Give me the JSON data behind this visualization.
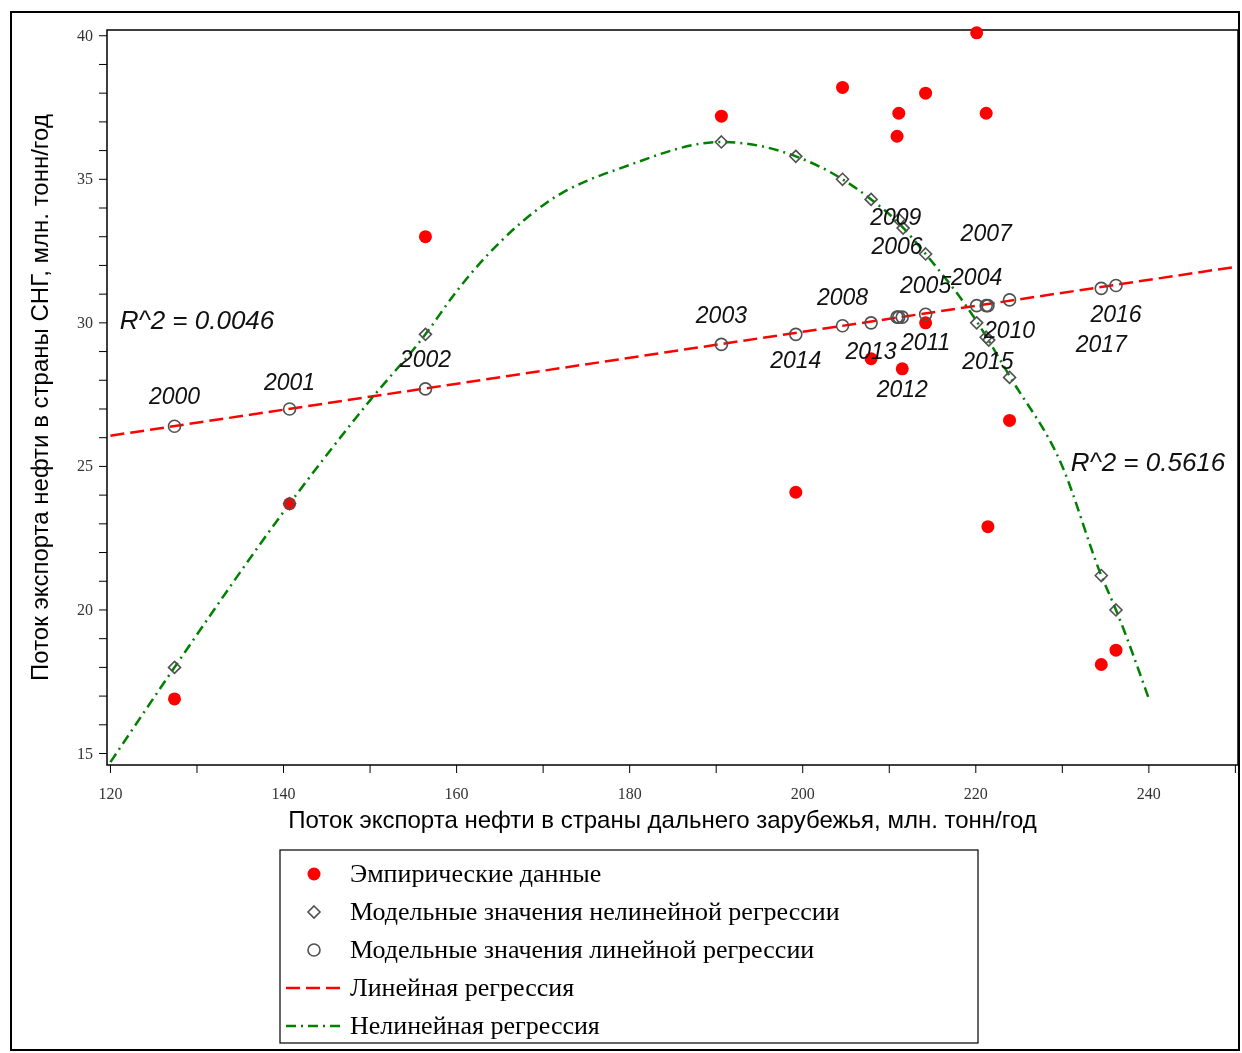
{
  "chart_data": {
    "type": "scatter",
    "xlabel": "Поток экспорта нефти в страны дальнего зарубежья, млн. тонн/год",
    "ylabel": "Поток экспорта нефти в страны СНГ, млн. тонн/год",
    "xlim": [
      119.6,
      250.3
    ],
    "ylim": [
      14.6,
      40.2
    ],
    "xticks": [
      120,
      {
        "value": 130,
        "label": null
      },
      140,
      {
        "value": 150,
        "label": null
      },
      160,
      {
        "value": 170,
        "label": null
      },
      180,
      {
        "value": 190,
        "label": null
      },
      200,
      {
        "value": 210,
        "label": null
      },
      220,
      {
        "value": 230,
        "label": null
      },
      240,
      {
        "value": 250,
        "label": null
      }
    ],
    "yticks": [
      15,
      {
        "value": 16,
        "label": null
      },
      {
        "value": 17,
        "label": null
      },
      {
        "value": 18,
        "label": null
      },
      {
        "value": 19,
        "label": null
      },
      20,
      {
        "value": 21,
        "label": null
      },
      {
        "value": 22,
        "label": null
      },
      {
        "value": 23,
        "label": null
      },
      {
        "value": 24,
        "label": null
      },
      25,
      {
        "value": 26,
        "label": null
      },
      {
        "value": 27,
        "label": null
      },
      {
        "value": 28,
        "label": null
      },
      {
        "value": 29,
        "label": null
      },
      30,
      {
        "value": 31,
        "label": null
      },
      {
        "value": 32,
        "label": null
      },
      {
        "value": 33,
        "label": null
      },
      {
        "value": 34,
        "label": null
      },
      35,
      {
        "value": 36,
        "label": null
      },
      {
        "value": 37,
        "label": null
      },
      {
        "value": 38,
        "label": null
      },
      {
        "value": 39,
        "label": null
      },
      40
    ],
    "grid": false,
    "legend": "bottom",
    "series": [
      {
        "name": "Эмпирические данные",
        "marker": "circle",
        "color": "#ff0000",
        "x": [
          127.4,
          140.7,
          156.4,
          190.6,
          199.2,
          204.6,
          211.1,
          210.9,
          214.2,
          220.1,
          221.2,
          207.9,
          211.5,
          214.2,
          223.9,
          221.4,
          234.5,
          236.2
        ],
        "values": [
          16.9,
          23.7,
          33.0,
          37.2,
          24.1,
          38.2,
          37.3,
          36.5,
          38.0,
          40.1,
          37.3,
          28.75,
          28.4,
          30.0,
          26.6,
          22.9,
          18.1,
          18.6
        ]
      },
      {
        "name": "Модельные значения нелинейной регрессии",
        "marker": "diamond",
        "color": "#505050",
        "x": [
          127.4,
          140.7,
          156.4,
          190.6,
          199.2,
          204.6,
          207.9,
          211.1,
          211.6,
          214.2,
          220.1,
          221.2,
          221.5,
          223.9,
          234.5,
          236.2
        ],
        "values": [
          18.0,
          23.7,
          29.6,
          36.3,
          35.8,
          35.0,
          34.3,
          33.6,
          33.3,
          32.4,
          30.0,
          29.5,
          29.4,
          28.1,
          21.2,
          20.0
        ]
      },
      {
        "name": "Модельные значения линейной регрессии",
        "marker": "circle",
        "color": "#505050",
        "x": [
          127.4,
          140.7,
          156.4,
          190.6,
          199.2,
          204.6,
          207.9,
          211.1,
          210.9,
          211.5,
          214.2,
          220.1,
          221.2,
          221.4,
          223.9,
          234.5,
          236.2
        ],
        "values": [
          26.4,
          27.0,
          27.7,
          29.25,
          29.6,
          29.9,
          30.0,
          30.2,
          30.2,
          30.2,
          30.3,
          30.6,
          30.6,
          30.6,
          30.8,
          31.2,
          31.3
        ]
      },
      {
        "name": "Линейная регрессия",
        "type": "line",
        "line_style": "dashed",
        "color": "#ff0000",
        "x": [
          120,
          250
        ],
        "values": [
          26.07,
          31.95
        ]
      },
      {
        "name": "Нелинейная регрессия",
        "type": "line",
        "line_style": "dashdot",
        "color": "#008000",
        "x": [
          120,
          127.4,
          140.7,
          150,
          156.4,
          160,
          170,
          180,
          190.6,
          199.2,
          204.6,
          207.9,
          211,
          214.2,
          220,
          224,
          230,
          234.5,
          236.2,
          240
        ],
        "values": [
          14.7,
          18.0,
          23.7,
          27.3,
          29.6,
          31.1,
          34.1,
          35.5,
          36.3,
          35.8,
          35.0,
          34.3,
          33.5,
          32.4,
          30.1,
          28.1,
          25.0,
          21.2,
          20.0,
          16.9
        ]
      }
    ],
    "annotations": [
      {
        "text": "2000",
        "x": 127.4,
        "y": 26.4
      },
      {
        "text": "2001",
        "x": 140.7,
        "y": 27.0
      },
      {
        "text": "2002",
        "x": 156.4,
        "y": 27.7
      },
      {
        "text": "2003",
        "x": 190.6,
        "y": 29.25
      },
      {
        "text": "2014",
        "x": 199.2,
        "y": 29.6
      },
      {
        "text": "2008",
        "x": 204.6,
        "y": 29.9
      },
      {
        "text": "2013",
        "x": 207.9,
        "y": 30.0
      },
      {
        "text": "2012",
        "x": 211.5,
        "y": 30.2
      },
      {
        "text": "2011",
        "x": 214.2,
        "y": 30.3
      },
      {
        "text": "2009",
        "x": 211.1,
        "y": 33.6
      },
      {
        "text": "2006",
        "x": 210.9,
        "y": 30.2
      },
      {
        "text": "2005",
        "x": 214.2,
        "y": 30.3
      },
      {
        "text": "2004",
        "x": 220.1,
        "y": 30.6
      },
      {
        "text": "2007",
        "x": 221.2,
        "y": 30.6
      },
      {
        "text": "2010",
        "x": 223.9,
        "y": 30.8
      },
      {
        "text": "2015",
        "x": 221.4,
        "y": 30.6
      },
      {
        "text": "2016",
        "x": 236.2,
        "y": 31.3
      },
      {
        "text": "2017",
        "x": 234.5,
        "y": 31.2
      },
      "R^2 = 0.0046",
      "R^2 = 0.5616"
    ]
  }
}
